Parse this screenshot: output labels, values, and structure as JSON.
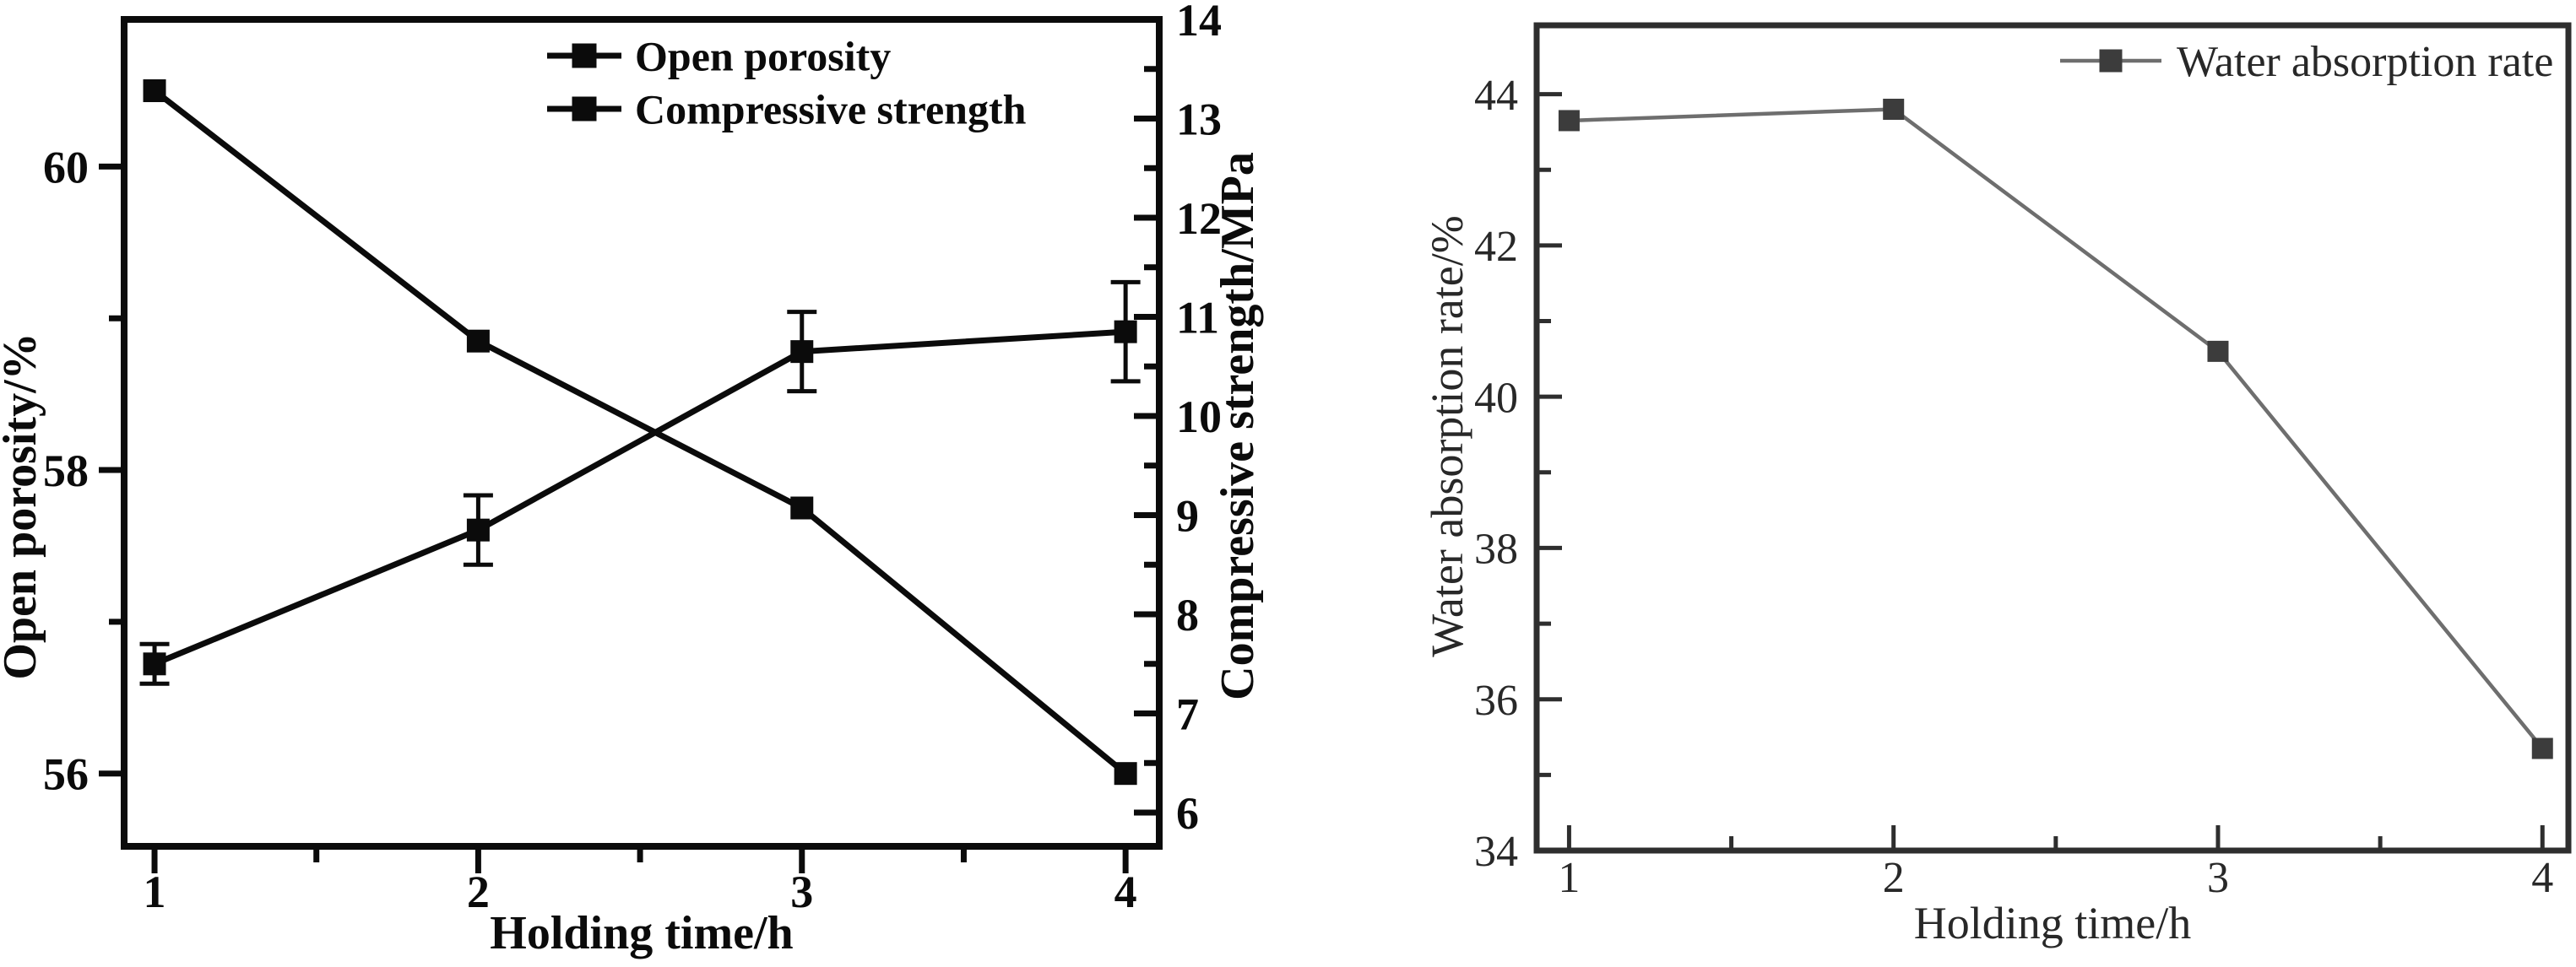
{
  "page": {
    "background": "#ffffff"
  },
  "chart_data": [
    {
      "id": "porosity-strength-chart",
      "type": "line",
      "x": [
        1,
        2,
        3,
        4
      ],
      "xlabel": "Holding time/h",
      "x_ticks": [
        "1",
        "2",
        "3",
        "4"
      ],
      "x_tick_values": [
        1,
        2,
        3,
        4
      ],
      "x_minor_ticks": [
        1.5,
        2.5,
        3.5
      ],
      "xlim": [
        0.906,
        4.104
      ],
      "grid": false,
      "text_color": "#0b0b0b",
      "y_axes": {
        "left": {
          "label": "Open porosity/%",
          "ticks": [
            56,
            58,
            60
          ],
          "minor_ticks": [
            57,
            59
          ],
          "lim": [
            55.52,
            60.97
          ]
        },
        "right": {
          "label": "Compressive strength/MPa",
          "ticks": [
            6,
            7,
            8,
            9,
            10,
            11,
            12,
            13,
            14
          ],
          "minor_ticks": [
            6.5,
            7.5,
            8.5,
            9.5,
            10.5,
            11.5,
            12.5,
            13.5
          ],
          "lim": [
            5.66,
            14.0
          ]
        }
      },
      "series": [
        {
          "name": "Open porosity",
          "axis": "left",
          "marker": "square",
          "values": [
            60.5,
            58.85,
            57.75,
            56.0
          ],
          "errors": [
            0,
            0,
            0,
            0
          ],
          "line_color": "#0b0b0b",
          "marker_color": "#0b0b0b"
        },
        {
          "name": "Compressive strength",
          "axis": "right",
          "marker": "square",
          "values": [
            7.5,
            8.85,
            10.65,
            10.85
          ],
          "errors": [
            0.2,
            0.35,
            0.4,
            0.5
          ],
          "line_color": "#0b0b0b",
          "marker_color": "#0b0b0b"
        }
      ],
      "legend": {
        "position": "top-inside-center",
        "entries": [
          "Open porosity",
          "Compressive strength"
        ]
      }
    },
    {
      "id": "water-absorption-chart",
      "type": "line",
      "x": [
        1,
        2,
        3,
        4
      ],
      "xlabel": "Holding time/h",
      "x_ticks": [
        "1",
        "2",
        "3",
        "4"
      ],
      "x_tick_values": [
        1,
        2,
        3,
        4
      ],
      "x_minor_ticks": [
        1.5,
        2.5,
        3.5
      ],
      "xlim": [
        0.9,
        4.08
      ],
      "grid": false,
      "text_color": "#282828",
      "y_axes": {
        "left": {
          "label": "Water absorption rate/%",
          "ticks": [
            34,
            36,
            38,
            40,
            42,
            44
          ],
          "minor_ticks": [
            35,
            37,
            39,
            41,
            43
          ],
          "lim": [
            34.0,
            44.91
          ]
        }
      },
      "series": [
        {
          "name": "Water absorption rate",
          "axis": "left",
          "marker": "square",
          "values": [
            43.65,
            43.8,
            40.6,
            35.35
          ],
          "errors": [
            0,
            0,
            0,
            0
          ],
          "line_color": "#6e6e6e",
          "marker_color": "#3c3c3c"
        }
      ],
      "legend": {
        "position": "top-inside-right",
        "entries": [
          "Water absorption rate"
        ]
      }
    }
  ]
}
